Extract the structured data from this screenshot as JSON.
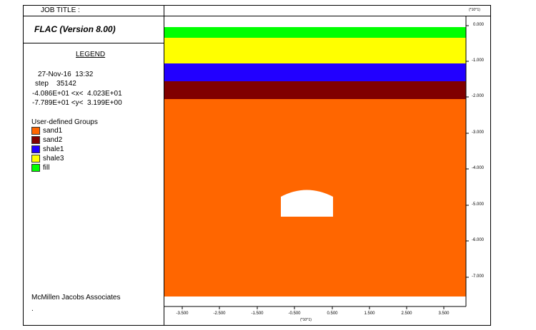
{
  "header": {
    "job_title": "JOB TITLE :",
    "program": "FLAC (Version 8.00)"
  },
  "legend": {
    "title": "LEGEND",
    "date": "27-Nov-16  13:32",
    "step": "step    35142",
    "x_range": "-4.086E+01 <x<  4.023E+01",
    "y_range": "-7.789E+01 <y<  3.199E+00",
    "groups_title": "User-defined Groups",
    "groups": [
      {
        "label": "sand1",
        "color": "#ff6600"
      },
      {
        "label": "sand2",
        "color": "#800000"
      },
      {
        "label": "shale1",
        "color": "#2200ff"
      },
      {
        "label": "shale3",
        "color": "#ffff00"
      },
      {
        "label": "fill",
        "color": "#00ff00"
      }
    ]
  },
  "footer": {
    "company": "McMillen Jacobs Associates",
    "dot": "."
  },
  "axes": {
    "y_scale_note": "(*10^1)",
    "x_scale_note": "(*10^1)",
    "y_ticks": [
      "0.000",
      "-1.000",
      "-2.000",
      "-3.000",
      "-4.000",
      "-5.000",
      "-6.000",
      "-7.000"
    ],
    "x_ticks": [
      "-3.500",
      "-2.500",
      "-1.500",
      "-0.500",
      "0.500",
      "1.500",
      "2.500",
      "3.500"
    ]
  }
}
